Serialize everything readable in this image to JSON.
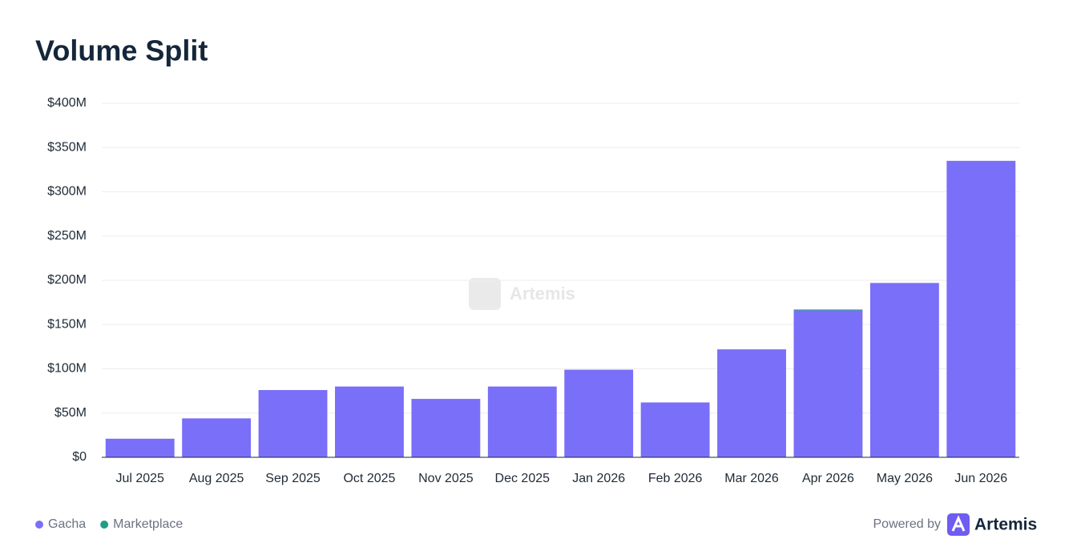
{
  "chart_data": {
    "type": "bar",
    "stacked": true,
    "title": "Volume Split",
    "categories": [
      "Jul 2025",
      "Aug 2025",
      "Sep 2025",
      "Oct 2025",
      "Nov 2025",
      "Dec 2025",
      "Jan 2026",
      "Feb 2026",
      "Mar 2026",
      "Apr 2026",
      "May 2026",
      "Jun 2026"
    ],
    "series": [
      {
        "name": "Gacha",
        "color": "#7a6ff8",
        "values": [
          21,
          44,
          76,
          80,
          66,
          80,
          99,
          62,
          122,
          166,
          197,
          335
        ]
      },
      {
        "name": "Marketplace",
        "color": "#1f9e86",
        "values": [
          0,
          0,
          0,
          0,
          0,
          0,
          0,
          0,
          0,
          1,
          0,
          0
        ]
      }
    ],
    "ylim": [
      0,
      400
    ],
    "yticks": [
      {
        "value": 0,
        "label": "$0"
      },
      {
        "value": 50,
        "label": "$50M"
      },
      {
        "value": 100,
        "label": "$100M"
      },
      {
        "value": 150,
        "label": "$150M"
      },
      {
        "value": 200,
        "label": "$200M"
      },
      {
        "value": 250,
        "label": "$250M"
      },
      {
        "value": 300,
        "label": "$300M"
      },
      {
        "value": 350,
        "label": "$350M"
      },
      {
        "value": 400,
        "label": "$400M"
      }
    ],
    "grid": true,
    "legend": "bottom-left",
    "watermark": "Artemis",
    "credit": {
      "prefix": "Powered by",
      "brand": "Artemis"
    }
  }
}
